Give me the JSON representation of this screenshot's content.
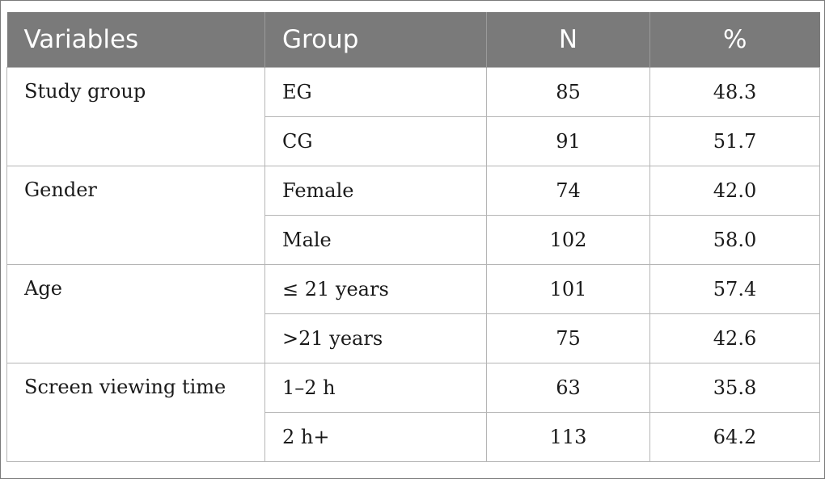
{
  "table": {
    "headers": [
      "Variables",
      "Group",
      "N",
      "%"
    ],
    "groups": [
      {
        "variable": "Study group",
        "rows": [
          {
            "group": "EG",
            "n": "85",
            "pct": "48.3"
          },
          {
            "group": "CG",
            "n": "91",
            "pct": "51.7"
          }
        ]
      },
      {
        "variable": "Gender",
        "rows": [
          {
            "group": "Female",
            "n": "74",
            "pct": "42.0"
          },
          {
            "group": "Male",
            "n": "102",
            "pct": "58.0"
          }
        ]
      },
      {
        "variable": "Age",
        "rows": [
          {
            "group": "≤ 21 years",
            "n": "101",
            "pct": "57.4"
          },
          {
            "group": ">21 years",
            "n": "75",
            "pct": "42.6"
          }
        ]
      },
      {
        "variable": "Screen viewing time",
        "rows": [
          {
            "group": "1–2 h",
            "n": "63",
            "pct": "35.8"
          },
          {
            "group": "2 h+",
            "n": "113",
            "pct": "64.2"
          }
        ]
      }
    ]
  },
  "colors": {
    "header_bg": "#7a7a7a",
    "header_text": "#ffffff",
    "grid_line": "#b5b5b5"
  }
}
